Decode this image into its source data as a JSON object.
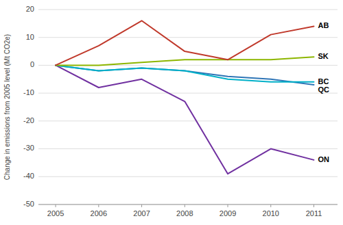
{
  "chart_data": {
    "type": "line",
    "x": [
      2005,
      2006,
      2007,
      2008,
      2009,
      2010,
      2011
    ],
    "series": [
      {
        "name": "ON",
        "color": "#7030a0",
        "values": [
          0,
          -8,
          -5,
          -13,
          -39,
          -30,
          -34
        ]
      },
      {
        "name": "QC",
        "color": "#2e75b6",
        "values": [
          0,
          -2,
          -1,
          -2,
          -4,
          -5,
          -7
        ]
      },
      {
        "name": "BC",
        "color": "#00b0c8",
        "values": [
          0,
          -2,
          -1,
          -2,
          -5,
          -6,
          -6
        ]
      },
      {
        "name": "SK",
        "color": "#8db600",
        "values": [
          0,
          0,
          1,
          2,
          2,
          2,
          3
        ]
      },
      {
        "name": "AB",
        "color": "#c0392b",
        "values": [
          0,
          7,
          16,
          5,
          2,
          11,
          14
        ]
      }
    ],
    "xlim": [
      2004.6,
      2011.55
    ],
    "xticks": [
      2005,
      2006,
      2007,
      2008,
      2009,
      2010,
      2011
    ],
    "ylim": [
      -50,
      20
    ],
    "yticks": [
      -50,
      -40,
      -30,
      -20,
      -10,
      0,
      10,
      20
    ],
    "y_label": "Change in emissions from 2005 level (Mt CO2e)",
    "grid": true
  }
}
